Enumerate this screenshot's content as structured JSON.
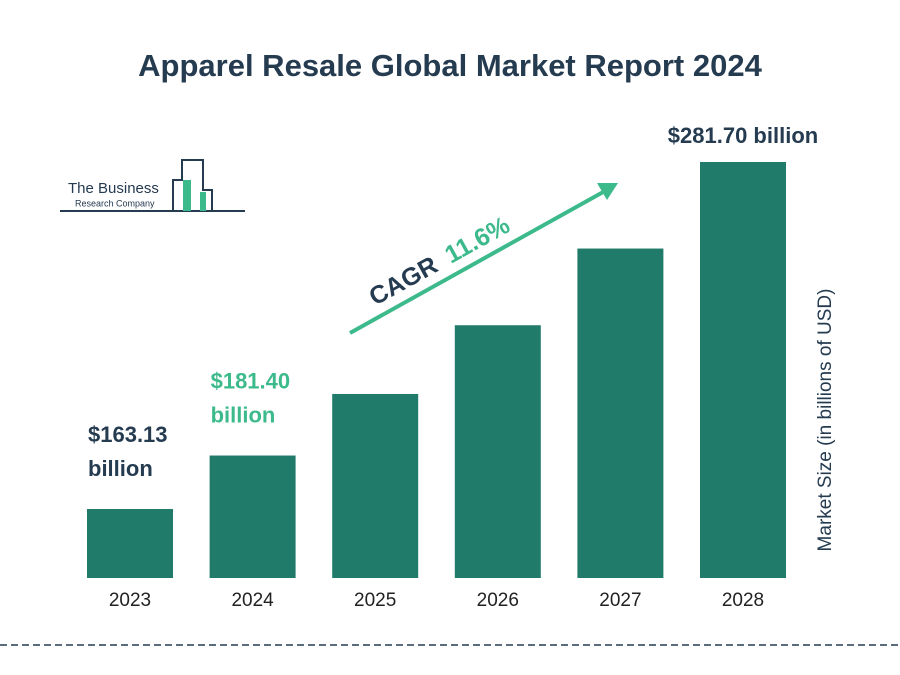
{
  "chart_data": {
    "type": "bar",
    "title": "Apparel Resale Global Market Report 2024",
    "logo": [
      "The Business",
      "Research Company"
    ],
    "y_label": "Market Size (in billions of USD)",
    "categories": [
      "2023",
      "2024",
      "2025",
      "2026",
      "2027",
      "2028"
    ],
    "values": [
      163.13,
      181.4,
      202.44,
      225.92,
      252.13,
      281.7
    ],
    "value_labels": [
      "$163.13 billion",
      "$181.40 billion",
      null,
      null,
      null,
      "$281.70 billion"
    ],
    "color": "#217b6b",
    "annotation": {
      "label": "CAGR",
      "value": "11.6%"
    }
  }
}
